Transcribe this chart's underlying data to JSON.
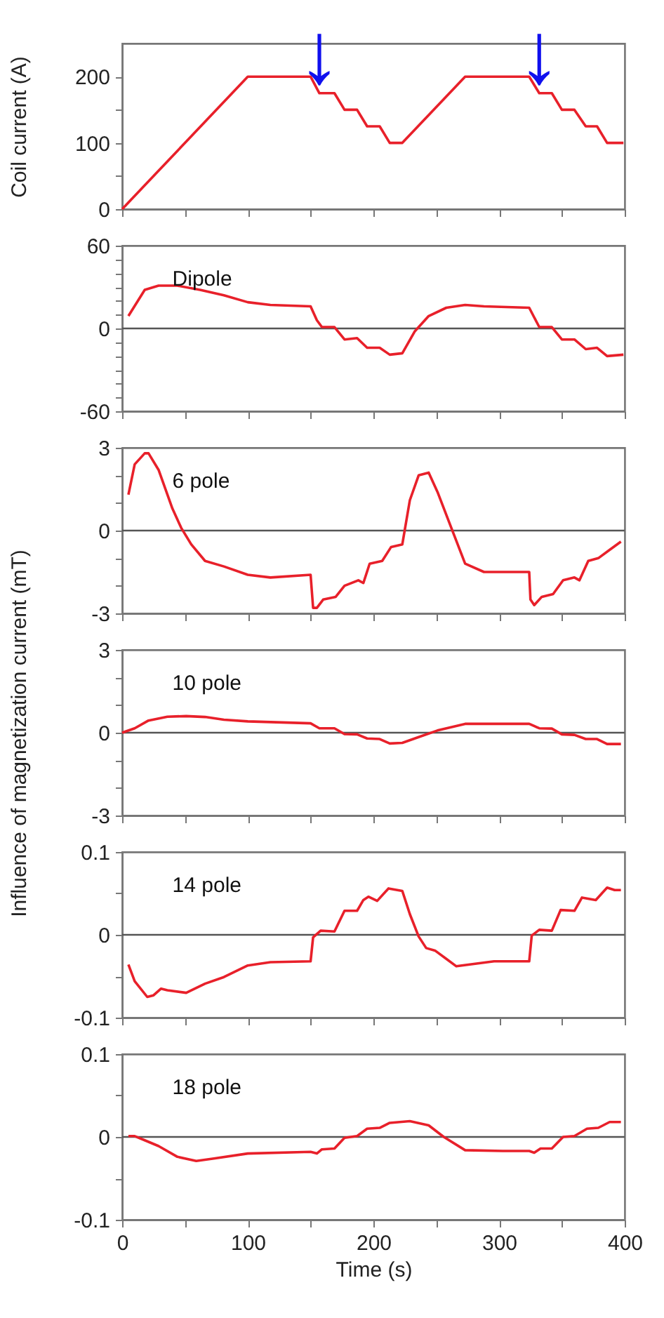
{
  "chart_data": [
    {
      "type": "line",
      "ylabel": "Coil current (A)",
      "xlim": [
        0,
        400
      ],
      "ylim": [
        0,
        250
      ],
      "xticks": [
        0,
        {
          "value": 50,
          "label": null
        },
        100,
        {
          "value": 150,
          "label": null
        },
        200,
        {
          "value": 250,
          "label": null
        },
        300,
        {
          "value": 350,
          "label": null
        },
        400
      ],
      "yticks": [
        0,
        {
          "value": 50,
          "label": null
        },
        100,
        {
          "value": 150,
          "label": null
        },
        200
      ],
      "tick_labels": "y",
      "grid": false,
      "series": [
        {
          "color": "#e8202a",
          "x": [
            0,
            100,
            150,
            157,
            169,
            177,
            187,
            195,
            205,
            213,
            223,
            273,
            324,
            332,
            342,
            350,
            360,
            369,
            378,
            386,
            399
          ],
          "values": [
            0,
            200,
            200,
            175,
            175,
            150,
            150,
            125,
            125,
            100,
            100,
            200,
            200,
            175,
            175,
            150,
            150,
            125,
            125,
            100,
            100
          ]
        }
      ],
      "annotations": [
        {
          "text": "↓",
          "x": 157,
          "y": 189
        },
        {
          "text": "↓",
          "x": 332,
          "y": 189
        }
      ]
    },
    {
      "type": "line",
      "xlim": [
        0,
        400
      ],
      "ylim": [
        -60,
        60
      ],
      "xticks": [
        0,
        {
          "value": 50,
          "label": null
        },
        100,
        {
          "value": 150,
          "label": null
        },
        200,
        {
          "value": 250,
          "label": null
        },
        300,
        {
          "value": 350,
          "label": null
        },
        400
      ],
      "yticks": [
        -60,
        {
          "value": -50,
          "label": null
        },
        {
          "value": -40,
          "label": null
        },
        {
          "value": -30,
          "label": null
        },
        {
          "value": -20,
          "label": null
        },
        {
          "value": -10,
          "label": null
        },
        0,
        {
          "value": 10,
          "label": null
        },
        {
          "value": 20,
          "label": null
        },
        {
          "value": 30,
          "label": null
        },
        {
          "value": 40,
          "label": null
        },
        {
          "value": 50,
          "label": null
        },
        60
      ],
      "tick_labels": "y",
      "grid": false,
      "series": [
        {
          "color": "#e8202a",
          "x": [
            5,
            18,
            29,
            44,
            62,
            81,
            100,
            118,
            150,
            155,
            159,
            169,
            177,
            187,
            195,
            205,
            213,
            223,
            233,
            244,
            258,
            273,
            288,
            324,
            332,
            342,
            350,
            360,
            369,
            378,
            386,
            399
          ],
          "values": [
            9,
            28,
            31,
            31,
            28,
            24,
            19,
            17,
            16,
            6,
            1,
            1,
            -8,
            -7,
            -14,
            -14,
            -19,
            -18,
            -2,
            9,
            15,
            17,
            16,
            15,
            1,
            1,
            -8,
            -8,
            -15,
            -14,
            -20,
            -19
          ]
        }
      ],
      "ref_lines": [
        {
          "axis": "y",
          "value": 0,
          "color": "#555555"
        }
      ],
      "annotations": [
        "Dipole"
      ]
    },
    {
      "type": "line",
      "xlim": [
        0,
        400
      ],
      "ylim": [
        -3,
        3
      ],
      "xticks": [
        0,
        {
          "value": 50,
          "label": null
        },
        100,
        {
          "value": 150,
          "label": null
        },
        200,
        {
          "value": 250,
          "label": null
        },
        300,
        {
          "value": 350,
          "label": null
        },
        400
      ],
      "yticks": [
        -3,
        {
          "value": -2,
          "label": null
        },
        {
          "value": -1,
          "label": null
        },
        0,
        {
          "value": 1,
          "label": null
        },
        {
          "value": 2,
          "label": null
        },
        3
      ],
      "tick_labels": "y",
      "grid": false,
      "series": [
        {
          "color": "#e8202a",
          "x": [
            5,
            10,
            18,
            21,
            29,
            40,
            47,
            55,
            66,
            81,
            100,
            118,
            150,
            152,
            155,
            160,
            170,
            177,
            188,
            192,
            197,
            207,
            214,
            223,
            229,
            236,
            244,
            251,
            262,
            273,
            288,
            303,
            324,
            325,
            328,
            334,
            343,
            351,
            360,
            364,
            371,
            379,
            388,
            397
          ],
          "values": [
            1.3,
            2.4,
            2.8,
            2.8,
            2.2,
            0.8,
            0.1,
            -0.5,
            -1.1,
            -1.3,
            -1.6,
            -1.7,
            -1.6,
            -2.8,
            -2.8,
            -2.5,
            -2.4,
            -2.0,
            -1.8,
            -1.9,
            -1.2,
            -1.1,
            -0.6,
            -0.5,
            1.1,
            2.0,
            2.1,
            1.4,
            0.1,
            -1.2,
            -1.5,
            -1.5,
            -1.5,
            -2.5,
            -2.7,
            -2.4,
            -2.3,
            -1.8,
            -1.7,
            -1.8,
            -1.1,
            -1.0,
            -0.7,
            -0.4
          ]
        }
      ],
      "ref_lines": [
        {
          "axis": "y",
          "value": 0,
          "color": "#555555"
        }
      ],
      "annotations": [
        "6 pole"
      ]
    },
    {
      "type": "line",
      "ylabel": "Influence of magnetization current (mT)",
      "xlim": [
        0,
        400
      ],
      "ylim": [
        -3,
        3
      ],
      "xticks": [
        0,
        {
          "value": 50,
          "label": null
        },
        100,
        {
          "value": 150,
          "label": null
        },
        200,
        {
          "value": 250,
          "label": null
        },
        300,
        {
          "value": 350,
          "label": null
        },
        400
      ],
      "yticks": [
        -3,
        {
          "value": -2,
          "label": null
        },
        {
          "value": -1,
          "label": null
        },
        0,
        {
          "value": 1,
          "label": null
        },
        {
          "value": 2,
          "label": null
        },
        3
      ],
      "tick_labels": "y",
      "grid": false,
      "series": [
        {
          "color": "#e8202a",
          "x": [
            0,
            10,
            21,
            36,
            51,
            66,
            81,
            100,
            150,
            157,
            169,
            177,
            187,
            195,
            205,
            213,
            223,
            236,
            251,
            273,
            324,
            332,
            342,
            350,
            360,
            369,
            378,
            386,
            397
          ],
          "values": [
            0,
            0.16,
            0.44,
            0.58,
            0.6,
            0.57,
            0.47,
            0.41,
            0.34,
            0.16,
            0.16,
            -0.05,
            -0.06,
            -0.21,
            -0.23,
            -0.39,
            -0.37,
            -0.16,
            0.08,
            0.32,
            0.32,
            0.16,
            0.15,
            -0.06,
            -0.08,
            -0.23,
            -0.23,
            -0.41,
            -0.41
          ]
        }
      ],
      "ref_lines": [
        {
          "axis": "y",
          "value": 0,
          "color": "#555555"
        }
      ],
      "annotations": [
        "10 pole"
      ]
    },
    {
      "type": "line",
      "xlim": [
        0,
        400
      ],
      "ylim": [
        -0.1,
        0.1
      ],
      "xticks": [
        0,
        {
          "value": 50,
          "label": null
        },
        100,
        {
          "value": 150,
          "label": null
        },
        200,
        {
          "value": 250,
          "label": null
        },
        300,
        {
          "value": 350,
          "label": null
        },
        400
      ],
      "yticks": [
        -0.1,
        {
          "value": -0.05,
          "label": null
        },
        0,
        {
          "value": 0.05,
          "label": null
        },
        0.1
      ],
      "tick_labels": "y",
      "grid": false,
      "series": [
        {
          "color": "#e8202a",
          "x": [
            5,
            10,
            20,
            25,
            31,
            36,
            51,
            66,
            81,
            100,
            118,
            150,
            152,
            158,
            169,
            177,
            187,
            192,
            196,
            203,
            212,
            223,
            229,
            236,
            242,
            249,
            258,
            266,
            281,
            296,
            324,
            326,
            332,
            342,
            349,
            360,
            366,
            377,
            386,
            392,
            397
          ],
          "values": [
            -0.036,
            -0.056,
            -0.075,
            -0.073,
            -0.065,
            -0.067,
            -0.07,
            -0.059,
            -0.051,
            -0.037,
            -0.033,
            -0.032,
            -0.003,
            0.005,
            0.004,
            0.029,
            0.029,
            0.042,
            0.046,
            0.041,
            0.056,
            0.053,
            0.025,
            -0.002,
            -0.016,
            -0.019,
            -0.029,
            -0.038,
            -0.035,
            -0.032,
            -0.032,
            -0.001,
            0.006,
            0.005,
            0.03,
            0.029,
            0.045,
            0.042,
            0.057,
            0.054,
            0.054
          ]
        }
      ],
      "ref_lines": [
        {
          "axis": "y",
          "value": 0,
          "color": "#555555"
        }
      ],
      "annotations": [
        "14 pole"
      ]
    },
    {
      "type": "line",
      "xlabel": "Time (s)",
      "xlim": [
        0,
        400
      ],
      "ylim": [
        -0.1,
        0.1
      ],
      "xticks": [
        0,
        {
          "value": 50,
          "label": null
        },
        100,
        {
          "value": 150,
          "label": null
        },
        200,
        {
          "value": 250,
          "label": null
        },
        300,
        {
          "value": 350,
          "label": null
        },
        400
      ],
      "yticks": [
        -0.1,
        {
          "value": -0.05,
          "label": null
        },
        0,
        {
          "value": 0.05,
          "label": null
        },
        0.1
      ],
      "grid": false,
      "series": [
        {
          "color": "#e8202a",
          "x": [
            5,
            10,
            18,
            29,
            44,
            59,
            73,
            100,
            150,
            155,
            159,
            169,
            177,
            187,
            195,
            205,
            213,
            229,
            244,
            256,
            273,
            303,
            324,
            328,
            333,
            342,
            351,
            360,
            370,
            379,
            388,
            397
          ],
          "values": [
            0.001,
            0.001,
            -0.004,
            -0.011,
            -0.024,
            -0.029,
            -0.026,
            -0.02,
            -0.018,
            -0.02,
            -0.015,
            -0.014,
            -0.001,
            0.001,
            0.01,
            0.011,
            0.017,
            0.019,
            0.014,
            0.0,
            -0.016,
            -0.017,
            -0.017,
            -0.019,
            -0.014,
            -0.014,
            0.0,
            0.001,
            0.01,
            0.011,
            0.018,
            0.018
          ]
        }
      ],
      "ref_lines": [
        {
          "axis": "y",
          "value": 0,
          "color": "#555555"
        }
      ],
      "annotations": [
        "18 pole"
      ]
    }
  ]
}
